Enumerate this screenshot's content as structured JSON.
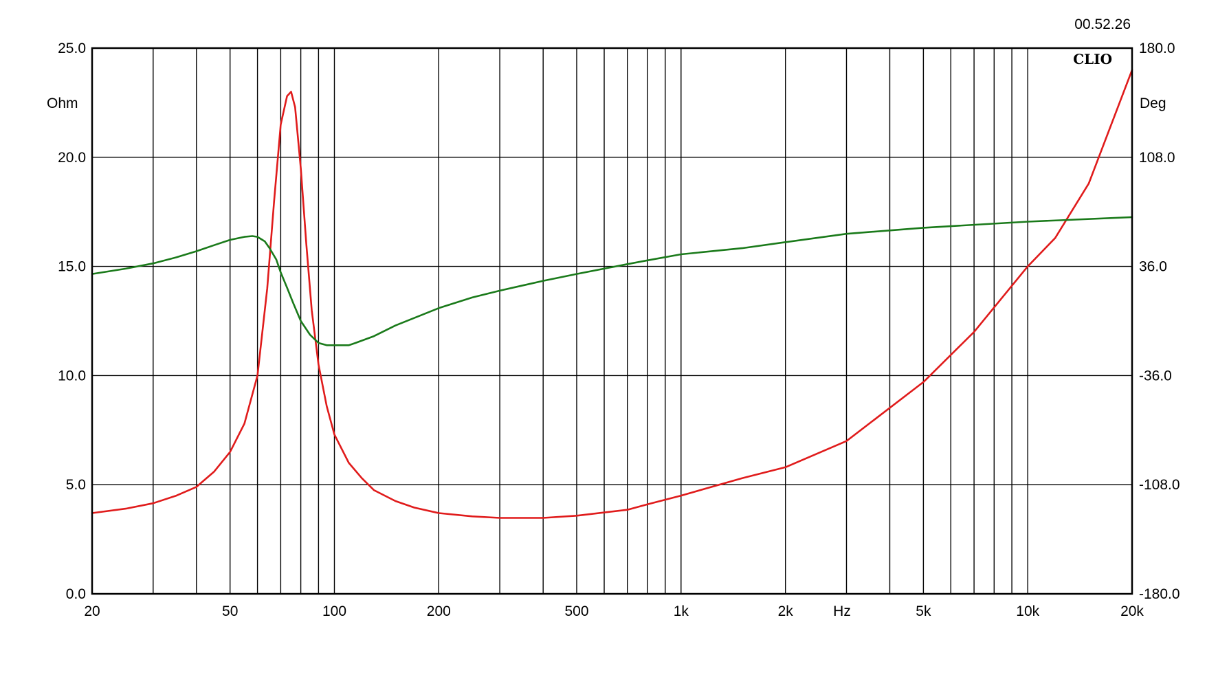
{
  "chart_data": {
    "type": "line",
    "timestamp": "00.52.26",
    "brand": "CLIO",
    "x_unit_label": "Hz",
    "x_scale": "log",
    "xlim": [
      20,
      20000
    ],
    "x_tick_labels": [
      {
        "value": 20,
        "label": "20"
      },
      {
        "value": 50,
        "label": "50"
      },
      {
        "value": 100,
        "label": "100"
      },
      {
        "value": 200,
        "label": "200"
      },
      {
        "value": 500,
        "label": "500"
      },
      {
        "value": 1000,
        "label": "1k"
      },
      {
        "value": 2000,
        "label": "2k"
      },
      {
        "value": 5000,
        "label": "5k"
      },
      {
        "value": 10000,
        "label": "10k"
      },
      {
        "value": 20000,
        "label": "20k"
      }
    ],
    "x_gridlines": [
      20,
      30,
      40,
      50,
      60,
      70,
      80,
      90,
      100,
      200,
      300,
      400,
      500,
      600,
      700,
      800,
      900,
      1000,
      2000,
      3000,
      4000,
      5000,
      6000,
      7000,
      8000,
      9000,
      10000,
      20000
    ],
    "y_left": {
      "unit_label": "Ohm",
      "range": [
        0,
        25
      ],
      "ticks": [
        "0.0",
        "5.0",
        "10.0",
        "15.0",
        "20.0",
        "25.0"
      ]
    },
    "y_right": {
      "unit_label": "Deg",
      "range": [
        -180,
        180
      ],
      "ticks": [
        "-180.0",
        "-108.0",
        "-36.0",
        "36.0",
        "108.0",
        "180.0"
      ]
    },
    "grid": true,
    "series": [
      {
        "axis": "left",
        "color": "#e01b1b",
        "x": [
          20,
          25,
          30,
          35,
          40,
          45,
          50,
          55,
          60,
          64,
          67,
          70,
          73,
          75,
          77,
          80,
          83,
          86,
          90,
          95,
          100,
          110,
          120,
          130,
          150,
          170,
          200,
          250,
          300,
          400,
          500,
          700,
          800,
          1000,
          1500,
          2000,
          3000,
          5000,
          7000,
          10000,
          12000,
          15000,
          20000
        ],
        "y": [
          3.7,
          3.9,
          4.15,
          4.5,
          4.9,
          5.6,
          6.5,
          7.8,
          10.0,
          14.0,
          18.0,
          21.5,
          22.8,
          23.0,
          22.3,
          19.5,
          16.0,
          13.0,
          10.5,
          8.6,
          7.3,
          6.0,
          5.3,
          4.75,
          4.25,
          3.95,
          3.7,
          3.55,
          3.48,
          3.48,
          3.58,
          3.85,
          4.1,
          4.5,
          5.3,
          5.8,
          7.0,
          9.7,
          12.0,
          15.0,
          16.3,
          18.8,
          24.0
        ]
      },
      {
        "axis": "right",
        "color": "#1a7a1a",
        "x": [
          20,
          25,
          30,
          35,
          40,
          45,
          50,
          55,
          58,
          60,
          63,
          65,
          68,
          70,
          73,
          76,
          80,
          85,
          90,
          95,
          100,
          110,
          115,
          130,
          150,
          200,
          250,
          300,
          400,
          500,
          700,
          800,
          1000,
          1500,
          2000,
          3000,
          5000,
          10000,
          20000
        ],
        "y": [
          31.0,
          34.5,
          38.0,
          42.0,
          46.0,
          50.0,
          53.5,
          55.5,
          56.0,
          55.5,
          52.5,
          48.0,
          40.5,
          32.0,
          22.0,
          12.0,
          0.0,
          -9.0,
          -14.5,
          -16.0,
          -16.0,
          -16.0,
          -14.5,
          -10.0,
          -3.0,
          8.5,
          15.5,
          20.0,
          26.5,
          31.0,
          37.5,
          40.0,
          44.0,
          48.0,
          52.0,
          57.5,
          61.5,
          65.5,
          68.5
        ]
      }
    ]
  }
}
